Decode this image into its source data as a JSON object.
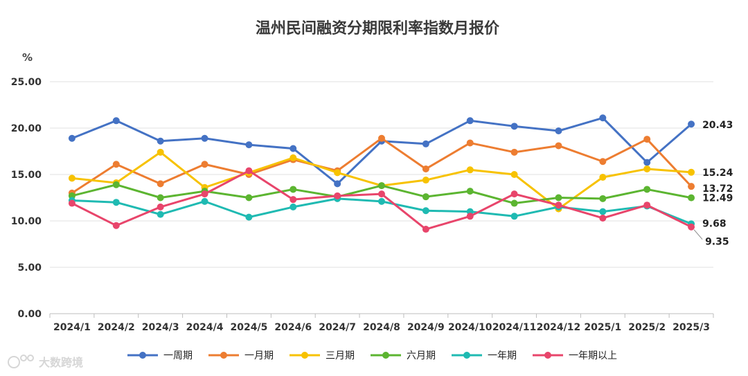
{
  "chart_data": {
    "type": "line",
    "title": "温州民间融资分期限利率指数月报价",
    "ylabel": "%",
    "ylim": [
      0,
      25
    ],
    "yticks": [
      "0.00",
      "5.00",
      "10.00",
      "15.00",
      "20.00",
      "25.00"
    ],
    "categories": [
      "2024/1",
      "2024/2",
      "2024/3",
      "2024/4",
      "2024/5",
      "2024/6",
      "2024/7",
      "2024/8",
      "2024/9",
      "2024/10",
      "2024/11",
      "2024/12",
      "2025/1",
      "2025/2",
      "2025/3"
    ],
    "series": [
      {
        "name": "一周期",
        "color": "#4472c4",
        "values": [
          18.9,
          20.8,
          18.6,
          18.9,
          18.2,
          17.8,
          14.0,
          18.6,
          18.3,
          20.8,
          20.2,
          19.7,
          21.1,
          16.3,
          20.43
        ],
        "end_label": "20.43"
      },
      {
        "name": "一月期",
        "color": "#ed7d31",
        "values": [
          13.0,
          16.1,
          14.0,
          16.1,
          15.0,
          16.6,
          15.4,
          18.9,
          15.6,
          18.4,
          17.4,
          18.1,
          16.4,
          18.8,
          13.72
        ],
        "end_label": "13.72"
      },
      {
        "name": "三月期",
        "color": "#f7c200",
        "values": [
          14.6,
          14.1,
          17.4,
          13.6,
          15.2,
          16.8,
          15.2,
          13.8,
          14.4,
          15.5,
          15.0,
          11.3,
          14.7,
          15.6,
          15.24
        ],
        "end_label": "15.24"
      },
      {
        "name": "六月期",
        "color": "#5cb531",
        "values": [
          12.7,
          13.9,
          12.5,
          13.2,
          12.5,
          13.4,
          12.6,
          13.8,
          12.6,
          13.2,
          11.9,
          12.5,
          12.4,
          13.4,
          12.49
        ],
        "end_label": "12.49"
      },
      {
        "name": "一年期",
        "color": "#1fbab2",
        "values": [
          12.2,
          12.0,
          10.7,
          12.1,
          10.4,
          11.5,
          12.4,
          12.1,
          11.1,
          11.0,
          10.5,
          11.5,
          11.0,
          11.6,
          9.68
        ],
        "end_label": "9.68"
      },
      {
        "name": "一年期以上",
        "color": "#e8456b",
        "values": [
          11.9,
          9.5,
          11.5,
          12.9,
          15.4,
          12.3,
          12.7,
          12.9,
          9.1,
          10.5,
          12.9,
          11.7,
          10.3,
          11.7,
          9.35
        ],
        "end_label": "9.35"
      }
    ]
  },
  "watermark": "大数跨境"
}
